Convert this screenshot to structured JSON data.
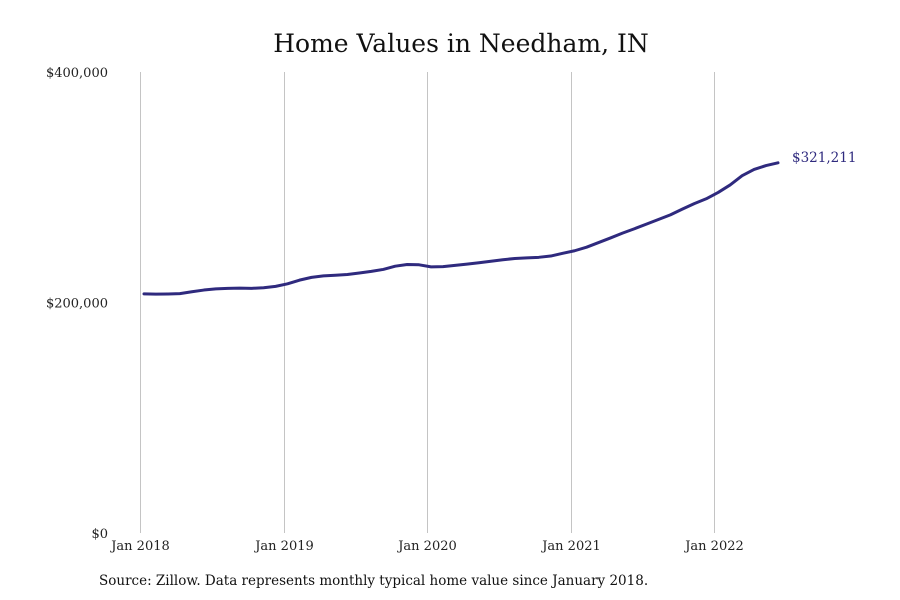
{
  "chart_data": {
    "type": "line",
    "title": "Home Values in Needham, IN",
    "xlabel": "",
    "ylabel": "",
    "ylim": [
      0,
      400000
    ],
    "y_ticks": [
      {
        "value": 0,
        "label": "$0"
      },
      {
        "value": 200000,
        "label": "$200,000"
      },
      {
        "value": 400000,
        "label": "$400,000"
      }
    ],
    "x_ticks": [
      {
        "index": 0,
        "label": "Jan 2018"
      },
      {
        "index": 12,
        "label": "Jan 2019"
      },
      {
        "index": 24,
        "label": "Jan 2020"
      },
      {
        "index": 36,
        "label": "Jan 2021"
      },
      {
        "index": 48,
        "label": "Jan 2022"
      }
    ],
    "grid": "vertical",
    "series": [
      {
        "name": "Home value",
        "color": "#2f2a7e",
        "values": [
          207500,
          207300,
          207400,
          207700,
          209300,
          210800,
          211800,
          212300,
          212500,
          212300,
          212800,
          214000,
          216200,
          219400,
          221800,
          223100,
          223700,
          224300,
          225600,
          227000,
          228700,
          231500,
          233000,
          232700,
          230900,
          231100,
          232200,
          233300,
          234500,
          235800,
          237100,
          238200,
          238700,
          239200,
          240300,
          242700,
          244900,
          248000,
          252000,
          256000,
          260200,
          264000,
          268000,
          272000,
          276000,
          281000,
          285800,
          290000,
          295500,
          302000,
          310000,
          315500,
          318800,
          321211
        ],
        "end_label": "$321,211"
      }
    ],
    "source": "Source: Zillow. Data represents monthly typical home value since January 2018."
  }
}
